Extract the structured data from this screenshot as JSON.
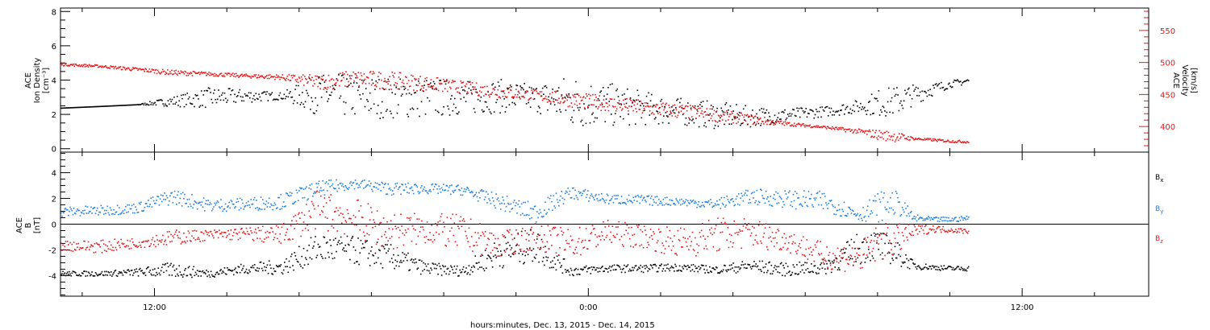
{
  "colors": {
    "black": "#000000",
    "red": "#e41a1c",
    "blue": "#1f7fe0"
  },
  "xaxis": {
    "label": "hours:minutes, Dec. 13, 2015 - Dec. 14, 2015",
    "range_hours": [
      -14.6,
      15.5
    ],
    "major_ticks": [
      {
        "h": -12,
        "label": "12:00"
      },
      {
        "h": 0,
        "label": "0:00"
      },
      {
        "h": 12,
        "label": "12:00"
      }
    ],
    "minor_step_hours": 2
  },
  "chart_data": [
    {
      "type": "scatter",
      "panel": "top",
      "title": "",
      "ylabel_left": [
        "ACE",
        "Ion Density",
        "[cm⁻³]"
      ],
      "ylabel_right": [
        "ACE",
        "Velocity",
        "[km/s]"
      ],
      "ylim_left": [
        -0.2,
        8.2
      ],
      "yticks_left": [
        0,
        2,
        4,
        6,
        8
      ],
      "ylim_right": [
        360,
        585
      ],
      "yticks_right": [
        400,
        450,
        500,
        550
      ],
      "series": [
        {
          "name": "Ion Density",
          "axis": "left",
          "color": "black",
          "x": [
            -14.6,
            -13.5,
            -12.5,
            -11.5,
            -10.5,
            -9.5,
            -8.5,
            -7.5,
            -6.5,
            -5.5,
            -4.5,
            -3.5,
            -2.5,
            -1.5,
            -0.5,
            0.5,
            1.5,
            2.5,
            3.5,
            4.5,
            5.5,
            6.5,
            7.5,
            8.0,
            8.5,
            9.0,
            9.5,
            10.0,
            10.5
          ],
          "y": [
            2.4,
            2.5,
            2.6,
            2.8,
            3.0,
            3.1,
            3.1,
            3.2,
            3.1,
            3.0,
            3.0,
            3.0,
            3.1,
            3.0,
            2.8,
            2.6,
            2.4,
            2.2,
            2.0,
            1.9,
            2.0,
            2.2,
            2.5,
            2.7,
            2.8,
            3.2,
            3.5,
            3.8,
            4.0
          ],
          "scatter": [
            0,
            0,
            0,
            0.3,
            0.6,
            0.4,
            0.2,
            1.2,
            1.3,
            1.2,
            1.2,
            1.0,
            1.0,
            0.8,
            1.6,
            1.3,
            1.0,
            0.8,
            0.8,
            0.6,
            0.4,
            0.3,
            0.4,
            0.8,
            0.9,
            0.6,
            0.4,
            0.2,
            0.2
          ]
        },
        {
          "name": "Velocity",
          "axis": "right",
          "color": "red",
          "x": [
            -14.6,
            -13.5,
            -12.5,
            -11.5,
            -10.5,
            -9.5,
            -8.5,
            -7.5,
            -6.5,
            -5.5,
            -4.5,
            -3.5,
            -2.5,
            -1.5,
            -0.5,
            0.5,
            1.5,
            2.5,
            3.5,
            4.5,
            5.5,
            6.5,
            7.5,
            8.0,
            8.5,
            9.0,
            9.5,
            10.0,
            10.5
          ],
          "y": [
            498,
            495,
            490,
            485,
            483,
            480,
            478,
            470,
            475,
            473,
            468,
            462,
            455,
            450,
            443,
            437,
            430,
            425,
            418,
            412,
            405,
            400,
            393,
            388,
            385,
            382,
            380,
            378,
            377
          ],
          "scatter": [
            2,
            2,
            3,
            4,
            3,
            3,
            4,
            12,
            14,
            14,
            12,
            10,
            10,
            9,
            12,
            12,
            12,
            12,
            10,
            8,
            3,
            2,
            4,
            8,
            8,
            2,
            2,
            2,
            2
          ]
        }
      ]
    },
    {
      "type": "scatter",
      "panel": "bottom",
      "title": "",
      "ylabel_left": [
        "ACE",
        "B",
        "[nT]"
      ],
      "ylim": [
        -5.6,
        5.6
      ],
      "yticks": [
        -4,
        -2,
        0,
        2,
        4
      ],
      "zero_line": true,
      "legend_placement": "right",
      "series": [
        {
          "name": "Bx",
          "color": "black",
          "x": [
            -14.6,
            -13.5,
            -12.5,
            -11.5,
            -10.5,
            -9.5,
            -8.5,
            -7.5,
            -6.5,
            -5.5,
            -4.5,
            -3.5,
            -2.5,
            -1.5,
            -0.5,
            0.5,
            1.5,
            2.5,
            3.5,
            4.5,
            5.5,
            6.5,
            7.5,
            8.0,
            8.5,
            9.0,
            9.5,
            10.0,
            10.5
          ],
          "y": [
            -3.8,
            -3.8,
            -3.7,
            -3.5,
            -3.8,
            -3.4,
            -3.3,
            -1.8,
            -2.0,
            -2.5,
            -3.4,
            -3.6,
            -2.2,
            -1.6,
            -3.6,
            -3.4,
            -3.4,
            -3.3,
            -3.5,
            -3.2,
            -3.5,
            -3.3,
            -1.8,
            -1.5,
            -2.2,
            -3.2,
            -3.3,
            -3.4,
            -3.4
          ],
          "scatter": [
            0.2,
            0.2,
            0.3,
            0.6,
            0.3,
            0.4,
            0.6,
            1.2,
            1.1,
            1.0,
            0.5,
            0.4,
            1.2,
            1.4,
            0.4,
            0.3,
            0.3,
            0.3,
            0.3,
            0.5,
            0.5,
            0.6,
            1.3,
            1.2,
            1.0,
            0.3,
            0.2,
            0.2,
            0.2
          ]
        },
        {
          "name": "By",
          "color": "blue",
          "x": [
            -14.6,
            -13.5,
            -12.5,
            -11.5,
            -10.5,
            -9.5,
            -8.5,
            -7.5,
            -6.5,
            -5.5,
            -4.5,
            -3.5,
            -2.5,
            -1.5,
            -0.5,
            0.5,
            1.5,
            2.5,
            3.5,
            4.5,
            5.5,
            6.5,
            7.5,
            8.0,
            8.5,
            9.0,
            9.5,
            10.0,
            10.5
          ],
          "y": [
            1.0,
            1.1,
            1.3,
            2.2,
            1.5,
            1.6,
            1.8,
            2.8,
            3.2,
            2.8,
            2.8,
            2.7,
            1.8,
            0.9,
            2.5,
            2.0,
            1.9,
            1.8,
            1.6,
            2.2,
            2.0,
            1.8,
            0.8,
            1.4,
            1.7,
            0.5,
            0.4,
            0.4,
            0.5
          ],
          "scatter": [
            0.4,
            0.4,
            0.4,
            0.6,
            0.5,
            0.5,
            0.6,
            0.6,
            0.4,
            0.5,
            0.4,
            0.4,
            0.6,
            0.8,
            0.5,
            0.4,
            0.4,
            0.3,
            0.4,
            0.6,
            0.7,
            0.8,
            0.5,
            1.2,
            0.9,
            0.3,
            0.2,
            0.2,
            0.2
          ]
        },
        {
          "name": "Bz",
          "color": "red",
          "x": [
            -14.6,
            -13.5,
            -12.5,
            -11.5,
            -10.5,
            -9.5,
            -8.5,
            -7.5,
            -6.5,
            -5.5,
            -4.5,
            -3.5,
            -2.5,
            -1.5,
            -0.5,
            0.5,
            1.5,
            2.5,
            3.5,
            4.5,
            5.5,
            6.5,
            7.5,
            8.0,
            8.5,
            9.0,
            9.5,
            10.0,
            10.5
          ],
          "y": [
            -1.6,
            -1.7,
            -1.4,
            -1.0,
            -0.8,
            -0.7,
            -0.8,
            1.2,
            0.5,
            -0.5,
            -0.3,
            -0.6,
            -1.6,
            -0.9,
            -1.5,
            -0.6,
            -0.9,
            -1.4,
            -0.8,
            -0.6,
            -1.2,
            -2.4,
            -2.6,
            -1.4,
            -1.2,
            -0.5,
            -0.3,
            -0.4,
            -0.5
          ],
          "scatter": [
            0.4,
            0.5,
            0.4,
            0.6,
            0.4,
            0.5,
            0.8,
            1.5,
            1.6,
            1.5,
            1.2,
            1.4,
            1.0,
            1.0,
            1.2,
            1.0,
            0.9,
            1.2,
            1.4,
            1.2,
            0.9,
            1.0,
            1.2,
            1.5,
            1.3,
            0.5,
            0.3,
            0.2,
            0.2
          ]
        }
      ]
    }
  ]
}
